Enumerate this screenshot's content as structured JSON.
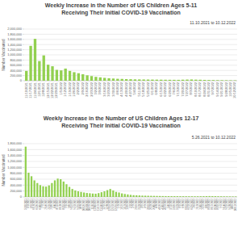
{
  "chart_data": [
    {
      "type": "bar",
      "title": "Weekly Increase in the Number of US Children Ages 5-11 Receiving Their Initial COVID-19 Vaccination",
      "subtitle": "11.10.2021 to 10.12.2022",
      "ylabel": "Number Vaccinated",
      "categories": [
        "11/10/2021",
        "11/17/2021",
        "11/24/2021",
        "12/1/2021",
        "12/8/2021",
        "12/15/2021",
        "12/22/2021",
        "12/29/2021",
        "1/5/2022",
        "1/12/2022",
        "1/19/2022",
        "1/26/2022",
        "2/2/2022",
        "2/9/2022",
        "2/16/2022",
        "2/23/2022",
        "3/2/2022",
        "3/9/2022",
        "3/16/2022",
        "3/23/2022",
        "3/30/2022",
        "4/6/2022",
        "4/13/2022",
        "4/20/2022",
        "4/27/2022",
        "5/4/2022",
        "5/11/2022",
        "5/18/2022",
        "5/25/2022",
        "6/1/2022",
        "6/8/2022",
        "6/15/2022",
        "6/22/2022",
        "6/29/2022",
        "7/6/2022",
        "7/13/2022",
        "7/20/2022",
        "7/27/2022",
        "8/3/2022",
        "8/10/2022",
        "8/17/2022",
        "8/24/2022",
        "8/31/2022",
        "9/7/2022",
        "9/14/2022",
        "9/21/2022",
        "9/28/2022",
        "10/5/2022",
        "10/12/2022"
      ],
      "values": [
        380000,
        1350000,
        1620000,
        760000,
        980000,
        620000,
        560000,
        420000,
        400000,
        470000,
        380000,
        330000,
        290000,
        250000,
        210000,
        180000,
        150000,
        130000,
        110000,
        95000,
        85000,
        75000,
        70000,
        62000,
        58000,
        52000,
        50000,
        48000,
        46000,
        44000,
        42000,
        40000,
        38000,
        36000,
        35000,
        34000,
        40000,
        45000,
        48000,
        42000,
        38000,
        32000,
        28000,
        25000,
        22000,
        20000,
        18000,
        16000,
        15000
      ],
      "color": "#92d050",
      "ylim": [
        0,
        2000000
      ],
      "yticks": [
        0,
        {
          "value": 200000,
          "label": "200,000"
        },
        {
          "value": 400000,
          "label": "400,000"
        },
        {
          "value": 600000,
          "label": "600,000"
        },
        {
          "value": 800000,
          "label": "800,000"
        },
        {
          "value": 1000000,
          "label": "1,000,000"
        },
        {
          "value": 1200000,
          "label": "1,200,000"
        },
        {
          "value": 1400000,
          "label": "1,400,000"
        },
        {
          "value": 1600000,
          "label": "1,600,000"
        },
        {
          "value": 1800000,
          "label": "1,800,000"
        },
        {
          "value": 2000000,
          "label": "2,000,000"
        }
      ],
      "grid": true
    },
    {
      "type": "bar",
      "title": "Weekly Increase in the Number of US Children Ages 12-17 Receiving Their Initial COVID-19 Vaccination",
      "subtitle": "5.26.2021 to 10.12.2022",
      "ylabel": "Number Vaccinated",
      "categories": [
        "5/26/2021",
        "6/2/2021",
        "6/9/2021",
        "6/16/2021",
        "6/23/2021",
        "6/30/2021",
        "7/7/2021",
        "7/14/2021",
        "7/21/2021",
        "7/28/2021",
        "8/4/2021",
        "8/11/2021",
        "8/18/2021",
        "8/25/2021",
        "9/1/2021",
        "9/8/2021",
        "9/15/2021",
        "9/22/2021",
        "9/29/2021",
        "10/6/2021",
        "10/13/2021",
        "10/20/2021",
        "10/27/2021",
        "11/3/2021",
        "11/10/2021",
        "11/17/2021",
        "11/24/2021",
        "12/1/2021",
        "12/8/2021",
        "12/15/2021",
        "12/22/2021",
        "12/29/2021",
        "1/5/2022",
        "1/12/2022",
        "1/19/2022",
        "1/26/2022",
        "2/2/2022",
        "2/9/2022",
        "2/16/2022",
        "2/23/2022",
        "3/2/2022",
        "3/9/2022",
        "3/16/2022",
        "3/23/2022",
        "3/30/2022",
        "4/6/2022",
        "4/13/2022",
        "4/20/2022",
        "4/27/2022",
        "5/4/2022",
        "5/11/2022",
        "5/18/2022",
        "5/25/2022",
        "6/1/2022",
        "6/8/2022",
        "6/15/2022",
        "6/22/2022",
        "6/29/2022",
        "7/6/2022",
        "7/13/2022",
        "7/20/2022",
        "7/27/2022",
        "8/3/2022",
        "8/10/2022",
        "8/17/2022",
        "8/24/2022",
        "8/31/2022",
        "9/7/2022",
        "9/14/2022",
        "9/21/2022",
        "9/28/2022",
        "10/5/2022",
        "10/12/2022"
      ],
      "values": [
        1700000,
        820000,
        700000,
        560000,
        470000,
        400000,
        360000,
        350000,
        390000,
        470000,
        560000,
        620000,
        600000,
        520000,
        430000,
        340000,
        270000,
        220000,
        190000,
        170000,
        150000,
        135000,
        125000,
        115000,
        110000,
        130000,
        160000,
        190000,
        230000,
        270000,
        220000,
        170000,
        150000,
        120000,
        100000,
        85000,
        70000,
        60000,
        55000,
        50000,
        45000,
        42000,
        40000,
        38000,
        36000,
        34000,
        32000,
        30000,
        29000,
        28000,
        27000,
        26000,
        25000,
        25000,
        24000,
        24000,
        23000,
        23000,
        22000,
        22000,
        24000,
        26000,
        28000,
        30000,
        28000,
        26000,
        24000,
        22000,
        20000,
        19000,
        18000,
        17000,
        16000
      ],
      "color": "#92d050",
      "ylim": [
        0,
        1800000
      ],
      "yticks": [
        0,
        {
          "value": 200000,
          "label": "200,000"
        },
        {
          "value": 400000,
          "label": "400,000"
        },
        {
          "value": 600000,
          "label": "600,000"
        },
        {
          "value": 800000,
          "label": "800,000"
        },
        {
          "value": 1000000,
          "label": "1,000,000"
        },
        {
          "value": 1200000,
          "label": "1,200,000"
        },
        {
          "value": 1400000,
          "label": "1,400,000"
        },
        {
          "value": 1600000,
          "label": "1,600,000"
        },
        {
          "value": 1800000,
          "label": "1,800,000"
        }
      ],
      "grid": true
    }
  ]
}
